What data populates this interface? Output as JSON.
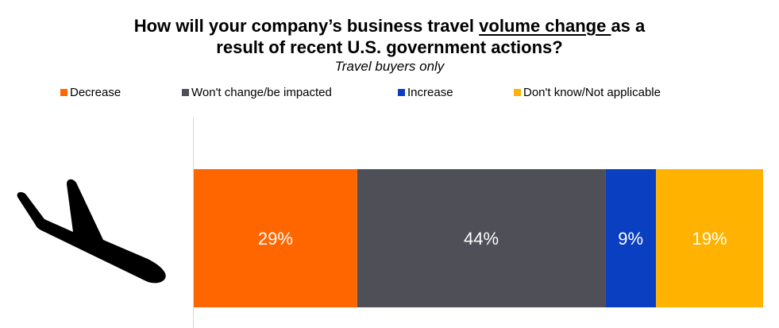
{
  "chart_data": {
    "type": "bar",
    "orientation": "horizontal-stacked",
    "title_part1": "How will your company’s business travel ",
    "title_underlined": "volume change ",
    "title_part2": "as a",
    "title_line2": "result of recent U.S. government actions?",
    "subtitle": "Travel buyers only",
    "legend_placement": "top",
    "grid": false,
    "xlim": [
      0,
      101
    ],
    "series": [
      {
        "name": "Decrease",
        "value": 29,
        "label": "29%",
        "color": "#ff6600"
      },
      {
        "name": "Won't change/be impacted",
        "value": 44,
        "label": "44%",
        "color": "#4f4f57"
      },
      {
        "name": "Increase",
        "value": 9,
        "label": "9%",
        "color": "#0a3fc1"
      },
      {
        "name": "Don't know/Not applicable",
        "value": 19,
        "label": "19%",
        "color": "#ffb300"
      }
    ],
    "data_label_color": "#ffffff",
    "icon": "airplane-landing-icon"
  }
}
